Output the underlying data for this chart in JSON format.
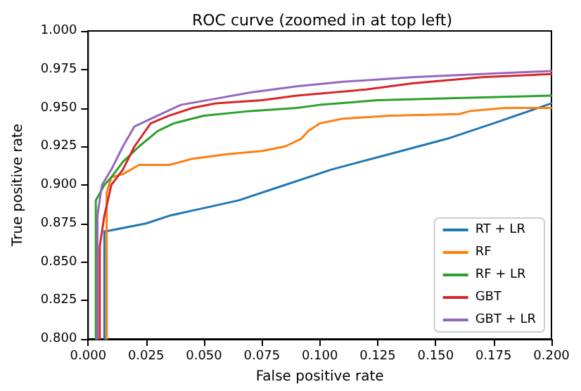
{
  "chart_data": {
    "type": "line",
    "title": "ROC curve (zoomed in at top left)",
    "xlabel": "False positive rate",
    "ylabel": "True positive rate",
    "xlim": [
      0,
      0.2
    ],
    "ylim": [
      0.8,
      1
    ],
    "xticks": [
      {
        "value": 0,
        "label": "0.000"
      },
      {
        "value": 0.025,
        "label": "0.025"
      },
      {
        "value": 0.05,
        "label": "0.050"
      },
      {
        "value": 0.075,
        "label": "0.075"
      },
      {
        "value": 0.1,
        "label": "0.100"
      },
      {
        "value": 0.125,
        "label": "0.125"
      },
      {
        "value": 0.15,
        "label": "0.150"
      },
      {
        "value": 0.175,
        "label": "0.175"
      },
      {
        "value": 0.2,
        "label": "0.200"
      }
    ],
    "yticks": [
      {
        "value": 0.8,
        "label": "0.800"
      },
      {
        "value": 0.825,
        "label": "0.825"
      },
      {
        "value": 0.85,
        "label": "0.850"
      },
      {
        "value": 0.875,
        "label": "0.875"
      },
      {
        "value": 0.9,
        "label": "0.900"
      },
      {
        "value": 0.925,
        "label": "0.925"
      },
      {
        "value": 0.95,
        "label": "0.950"
      },
      {
        "value": 0.975,
        "label": "0.975"
      },
      {
        "value": 1,
        "label": "1.000"
      }
    ],
    "grid": false,
    "legend": "bottom right",
    "marker": "none",
    "line_style": "solid",
    "series": [
      {
        "name": "RT + LR",
        "color": "#1f77b4",
        "x": [
          0.007,
          0.007,
          0.008,
          0.025,
          0.035,
          0.05,
          0.065,
          0.085,
          0.105,
          0.13,
          0.155,
          0.175,
          0.2
        ],
        "values": [
          0.8,
          0.87,
          0.87,
          0.875,
          0.88,
          0.885,
          0.89,
          0.9,
          0.91,
          0.92,
          0.93,
          0.94,
          0.953
        ]
      },
      {
        "name": "RF",
        "color": "#ff7f0e",
        "x": [
          0.008,
          0.008,
          0.01,
          0.015,
          0.022,
          0.035,
          0.045,
          0.06,
          0.075,
          0.085,
          0.092,
          0.095,
          0.1,
          0.11,
          0.13,
          0.16,
          0.165,
          0.18,
          0.2
        ],
        "values": [
          0.8,
          0.895,
          0.905,
          0.907,
          0.913,
          0.913,
          0.917,
          0.92,
          0.922,
          0.925,
          0.93,
          0.935,
          0.94,
          0.943,
          0.945,
          0.946,
          0.948,
          0.95,
          0.95
        ]
      },
      {
        "name": "RF + LR",
        "color": "#2ca02c",
        "x": [
          0.0033,
          0.0033,
          0.007,
          0.01,
          0.015,
          0.022,
          0.03,
          0.037,
          0.05,
          0.07,
          0.09,
          0.1,
          0.125,
          0.15,
          0.2
        ],
        "values": [
          0.8,
          0.89,
          0.9,
          0.905,
          0.915,
          0.925,
          0.935,
          0.94,
          0.945,
          0.948,
          0.95,
          0.952,
          0.955,
          0.956,
          0.958
        ]
      },
      {
        "name": "GBT",
        "color": "#d62728",
        "x": [
          0.005,
          0.005,
          0.007,
          0.01,
          0.015,
          0.02,
          0.027,
          0.035,
          0.045,
          0.055,
          0.075,
          0.09,
          0.12,
          0.14,
          0.17,
          0.2
        ],
        "values": [
          0.8,
          0.86,
          0.88,
          0.9,
          0.91,
          0.925,
          0.94,
          0.945,
          0.95,
          0.953,
          0.955,
          0.958,
          0.962,
          0.966,
          0.97,
          0.972
        ]
      },
      {
        "name": "GBT + LR",
        "color": "#9467bd",
        "x": [
          0.004,
          0.004,
          0.006,
          0.01,
          0.015,
          0.02,
          0.03,
          0.04,
          0.055,
          0.07,
          0.09,
          0.11,
          0.14,
          0.17,
          0.2
        ],
        "values": [
          0.8,
          0.88,
          0.9,
          0.91,
          0.925,
          0.938,
          0.945,
          0.952,
          0.956,
          0.96,
          0.964,
          0.967,
          0.97,
          0.972,
          0.974
        ]
      }
    ]
  }
}
